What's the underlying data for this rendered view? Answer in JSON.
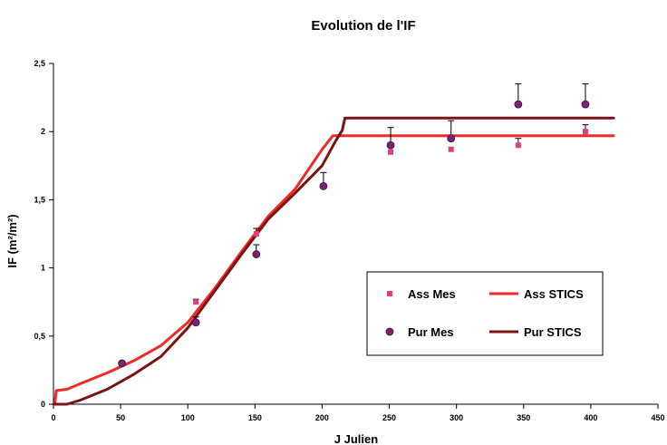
{
  "chart_data": {
    "type": "scatter",
    "title": "Evolution de l'IF",
    "xlabel": "J Julien",
    "ylabel": "IF (m²/m²)",
    "xlim": [
      0,
      450
    ],
    "ylim": [
      0,
      2.5
    ],
    "x_ticks": [
      0,
      50,
      100,
      150,
      200,
      250,
      300,
      350,
      400,
      450
    ],
    "y_ticks": [
      0,
      0.5,
      1,
      1.5,
      2,
      2.5
    ],
    "x_tick_labels": [
      "0",
      "50",
      "100",
      "150",
      "200",
      "250",
      "300",
      "350",
      "400",
      "450"
    ],
    "y_tick_labels": [
      "0",
      "0,5",
      "1",
      "1,5",
      "2",
      "2,5"
    ],
    "grid": false,
    "legend_position": "center-right",
    "series": [
      {
        "name": "Ass Mes",
        "kind": "scatter",
        "marker": "square",
        "color": "#e0407a",
        "x": [
          51,
          106,
          151,
          201,
          251,
          296,
          346,
          396
        ],
        "y": [
          0.3,
          0.75,
          1.25,
          1.6,
          1.85,
          1.87,
          1.9,
          2.0
        ],
        "error_up": [
          0,
          0.02,
          0.04,
          0,
          0,
          0,
          0.05,
          0.05
        ]
      },
      {
        "name": "Pur Mes",
        "kind": "scatter",
        "marker": "circle",
        "color": "#7b2470",
        "x": [
          51,
          106,
          151,
          201,
          251,
          296,
          346,
          396
        ],
        "y": [
          0.3,
          0.6,
          1.1,
          1.6,
          1.9,
          1.95,
          2.2,
          2.2
        ],
        "error_up": [
          0,
          0.04,
          0.07,
          0.1,
          0.13,
          0.13,
          0.15,
          0.15
        ]
      },
      {
        "name": "Ass STICS",
        "kind": "line",
        "color": "#ee2a2a",
        "x": [
          0,
          1,
          2,
          10,
          20,
          40,
          60,
          80,
          100,
          120,
          140,
          160,
          180,
          200,
          208,
          220,
          300,
          417
        ],
        "y": [
          0,
          0,
          0.1,
          0.11,
          0.15,
          0.23,
          0.32,
          0.43,
          0.6,
          0.85,
          1.12,
          1.38,
          1.58,
          1.87,
          1.97,
          1.97,
          1.97,
          1.97
        ]
      },
      {
        "name": "Pur STICS",
        "kind": "line",
        "color": "#7a1414",
        "x": [
          0,
          10,
          20,
          40,
          60,
          80,
          100,
          120,
          140,
          160,
          180,
          200,
          210,
          215,
          217,
          220,
          300,
          417
        ],
        "y": [
          0,
          0,
          0.03,
          0.11,
          0.22,
          0.35,
          0.56,
          0.83,
          1.1,
          1.36,
          1.55,
          1.75,
          1.93,
          2.01,
          2.1,
          2.1,
          2.1,
          2.1
        ]
      }
    ]
  }
}
